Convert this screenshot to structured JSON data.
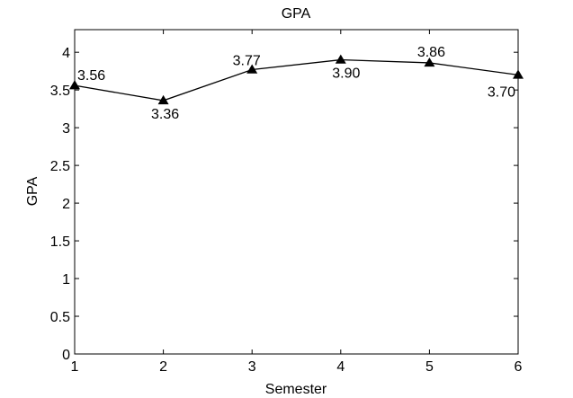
{
  "chart_data": {
    "type": "line",
    "title": "GPA",
    "xlabel": "Semester",
    "ylabel": "GPA",
    "x": [
      1,
      2,
      3,
      4,
      5,
      6
    ],
    "series": [
      {
        "values": [
          3.56,
          3.36,
          3.77,
          3.9,
          3.86,
          3.7
        ],
        "data_labels": [
          "3.56",
          "3.36",
          "3.77",
          "3.90",
          "3.86",
          "3.70"
        ],
        "marker": "triangle",
        "color": "#000000"
      }
    ],
    "xlim": [
      1,
      6
    ],
    "ylim": [
      0,
      4.3
    ],
    "xticks": [
      "1",
      "2",
      "3",
      "4",
      "5",
      "6"
    ],
    "yticks": [
      "0",
      "0.5",
      "1",
      "1.5",
      "2",
      "2.5",
      "3",
      "3.5",
      "4"
    ],
    "grid": false,
    "legend": "none"
  }
}
